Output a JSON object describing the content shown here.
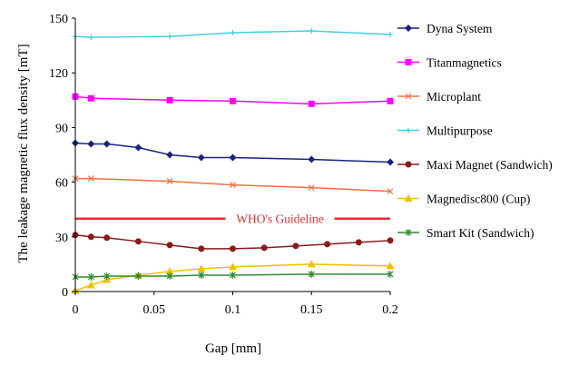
{
  "chart_data": {
    "type": "line",
    "title": "",
    "xlabel": "Gap [mm]",
    "ylabel": "The leakage magnetic flux density [mT]",
    "xlim": [
      0,
      0.2
    ],
    "ylim": [
      0,
      150
    ],
    "x_ticks": [
      "0",
      "0.05",
      "0.1",
      "0.15",
      "0.2"
    ],
    "y_ticks": [
      "0",
      "30",
      "60",
      "90",
      "120",
      "150"
    ],
    "grid": false,
    "legend_position": "right",
    "series": [
      {
        "name": "Dyna System",
        "color": "#1a237e",
        "marker": "diamond",
        "x": [
          0,
          0.01,
          0.02,
          0.04,
          0.06,
          0.08,
          0.1,
          0.15,
          0.2
        ],
        "y": [
          81.5,
          81,
          81,
          79,
          75,
          73.5,
          73.5,
          72.5,
          71
        ]
      },
      {
        "name": "Titanmagnetics",
        "color": "#ff00ff",
        "marker": "square",
        "x": [
          0,
          0.01,
          0.06,
          0.1,
          0.15,
          0.2
        ],
        "y": [
          107,
          106,
          105,
          104.5,
          103,
          104.5
        ]
      },
      {
        "name": "Microplant",
        "color": "#f07040",
        "marker": "x",
        "x": [
          0,
          0.01,
          0.06,
          0.1,
          0.15,
          0.2
        ],
        "y": [
          62,
          62,
          60.5,
          58.5,
          57,
          55
        ]
      },
      {
        "name": "Multipurpose",
        "color": "#40d0e0",
        "marker": "plus",
        "x": [
          0,
          0.01,
          0.06,
          0.1,
          0.15,
          0.2
        ],
        "y": [
          140,
          139.5,
          140,
          142,
          143,
          141
        ]
      },
      {
        "name": "Maxi Magnet (Sandwich)",
        "color": "#8b1a1a",
        "marker": "circle",
        "x": [
          0,
          0.01,
          0.02,
          0.04,
          0.06,
          0.08,
          0.1,
          0.12,
          0.14,
          0.16,
          0.18,
          0.2
        ],
        "y": [
          31,
          30,
          29.5,
          27.5,
          25.5,
          23.5,
          23.5,
          24,
          25,
          26,
          27,
          28
        ]
      },
      {
        "name": "Magnedisc800 (Cup)",
        "color": "#f0c000",
        "marker": "triangle",
        "x": [
          0,
          0.01,
          0.02,
          0.04,
          0.06,
          0.08,
          0.1,
          0.15,
          0.2
        ],
        "y": [
          0.5,
          3.5,
          6.5,
          9,
          11,
          12.5,
          13.5,
          15,
          14
        ]
      },
      {
        "name": "Smart Kit (Sandwich)",
        "color": "#2e8b2e",
        "marker": "star",
        "x": [
          0,
          0.01,
          0.02,
          0.04,
          0.06,
          0.08,
          0.1,
          0.15,
          0.2
        ],
        "y": [
          8,
          8,
          8.5,
          8.5,
          8.5,
          9,
          9,
          9.5,
          9.5
        ]
      }
    ],
    "annotations": [
      {
        "text": "WHO's Guideline",
        "y": 40,
        "color": "#e03030"
      }
    ]
  }
}
